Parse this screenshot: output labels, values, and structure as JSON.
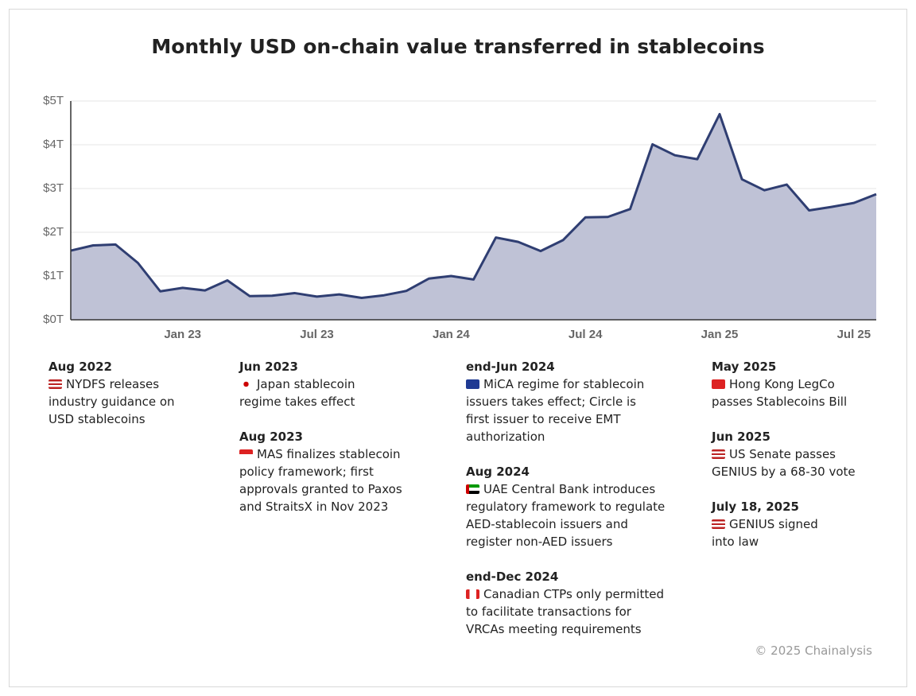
{
  "chart_data": {
    "type": "area",
    "title": "Monthly USD on-chain value transferred in stablecoins",
    "categories": [
      null,
      null,
      null,
      null,
      null,
      "Jan 23",
      null,
      null,
      null,
      null,
      null,
      "Jul 23",
      null,
      null,
      null,
      null,
      null,
      "Jan 24",
      null,
      null,
      null,
      null,
      null,
      "Jul 24",
      null,
      null,
      null,
      null,
      null,
      "Jan 25",
      null,
      null,
      null,
      null,
      null,
      "Jul 25",
      null
    ],
    "values": [
      1.58,
      1.7,
      1.72,
      1.3,
      0.65,
      0.73,
      0.67,
      0.9,
      0.54,
      0.55,
      0.61,
      0.53,
      0.58,
      0.5,
      0.56,
      0.66,
      0.94,
      1.0,
      0.92,
      1.88,
      1.78,
      1.57,
      1.82,
      2.34,
      2.35,
      2.53,
      4.01,
      3.76,
      3.67,
      4.7,
      3.21,
      2.96,
      3.09,
      2.5,
      2.58,
      2.67,
      2.87
    ],
    "color": "#2f3e72",
    "fill": "#bfc2d6",
    "ylim": [
      0,
      5
    ],
    "yticks": [
      {
        "value": 0,
        "label": "$0T"
      },
      {
        "value": 1,
        "label": "$1T"
      },
      {
        "value": 2,
        "label": "$2T"
      },
      {
        "value": 3,
        "label": "$3T"
      },
      {
        "value": 4,
        "label": "$4T"
      },
      {
        "value": 5,
        "label": "$5T"
      }
    ],
    "grid": true
  },
  "annotations": [
    [
      {
        "date": "Aug 2022",
        "flag": "us",
        "lines": [
          "NYDFS releases",
          "industry guidance on",
          "USD stablecoins"
        ]
      }
    ],
    [
      {
        "date": "Jun 2023",
        "flag": "jp",
        "lines": [
          "Japan stablecoin",
          "regime takes effect"
        ]
      },
      {
        "date": "Aug 2023",
        "flag": "sg",
        "lines": [
          "MAS finalizes stablecoin",
          "policy framework; first",
          "approvals granted to Paxos",
          "and StraitsX in Nov 2023"
        ]
      }
    ],
    [
      {
        "date": "end-Jun 2024",
        "flag": "eu",
        "lines": [
          "MiCA regime for stablecoin",
          "issuers takes effect; Circle is",
          "first issuer to receive EMT",
          "authorization"
        ]
      },
      {
        "date": "Aug 2024",
        "flag": "ae",
        "lines": [
          "UAE Central Bank introduces",
          "regulatory framework to regulate",
          "AED-stablecoin issuers and",
          "register non-AED issuers"
        ]
      },
      {
        "date": "end-Dec 2024",
        "flag": "ca",
        "lines": [
          "Canadian CTPs only permitted",
          "to facilitate transactions for",
          "VRCAs meeting requirements"
        ]
      }
    ],
    [
      {
        "date": "May 2025",
        "flag": "hk",
        "lines": [
          "Hong Kong LegCo",
          "passes Stablecoins Bill"
        ]
      },
      {
        "date": "Jun 2025",
        "flag": "us",
        "lines": [
          "US Senate passes",
          "GENIUS by a 68-30 vote"
        ]
      },
      {
        "date": "July 18, 2025",
        "flag": "us",
        "lines": [
          "GENIUS signed",
          "into law"
        ]
      }
    ]
  ],
  "footer": "© 2025 Chainalysis"
}
